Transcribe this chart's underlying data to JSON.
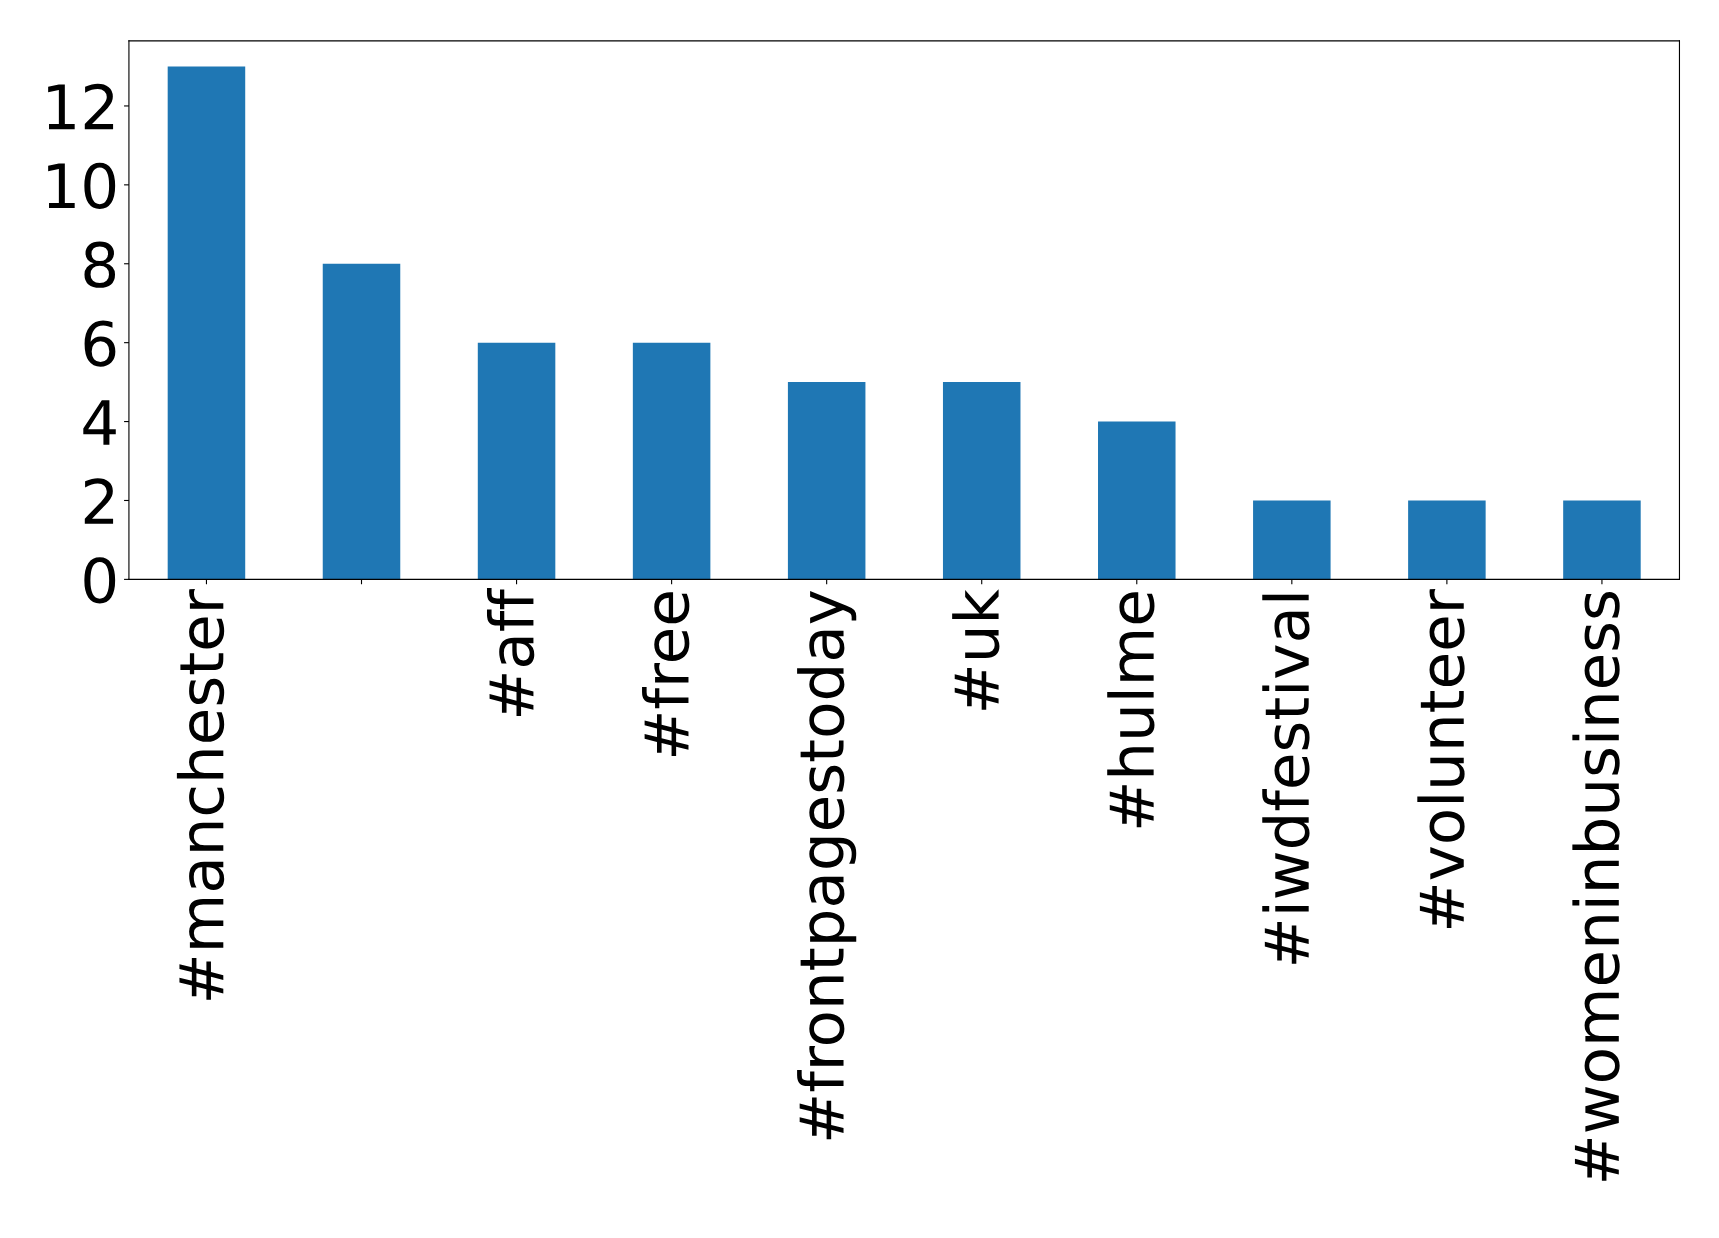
{
  "chart_data": {
    "type": "bar",
    "categories": [
      "#manchester",
      null,
      "#aff",
      "#free",
      "#frontpagestoday",
      "#uk",
      "#hulme",
      "#iwdfestival",
      "#volunteer",
      "#womeninbusiness"
    ],
    "values": [
      13,
      8,
      6,
      6,
      5,
      5,
      4,
      2,
      2,
      2
    ],
    "color": "#1f77b4",
    "ylim": [
      0,
      13.65
    ],
    "yticks": [
      0,
      2,
      4,
      6,
      8,
      10,
      12
    ],
    "grid": false,
    "legend": false
  }
}
